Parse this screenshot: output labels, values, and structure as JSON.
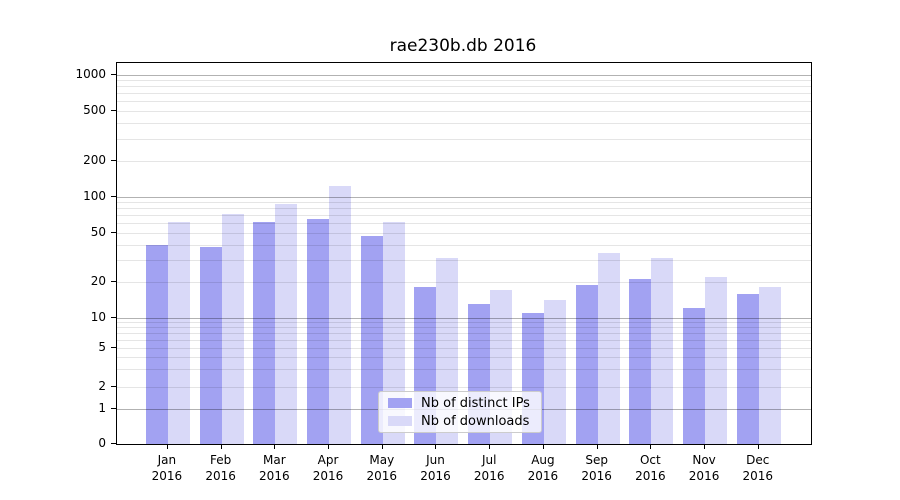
{
  "title": "rae230b.db 2016",
  "chart_data": {
    "type": "bar",
    "title": "rae230b.db 2016",
    "categories": [
      "Jan",
      "Feb",
      "Mar",
      "Apr",
      "May",
      "Jun",
      "Jul",
      "Aug",
      "Sep",
      "Oct",
      "Nov",
      "Dec"
    ],
    "year_label": "2016",
    "series": [
      {
        "name": "Nb of distinct IPs",
        "color": "#a2a2f2",
        "values": [
          40,
          38,
          61,
          65,
          47,
          18,
          13,
          11,
          19,
          21,
          12,
          16
        ]
      },
      {
        "name": "Nb of downloads",
        "color": "#d9d9f8",
        "values": [
          61,
          72,
          87,
          123,
          62,
          31,
          17,
          14,
          34,
          31,
          22,
          18
        ]
      }
    ],
    "xlabel": "",
    "ylabel": "",
    "yscale": "symlog",
    "yticks": [
      0,
      1,
      2,
      5,
      10,
      20,
      50,
      100,
      200,
      500,
      1000
    ],
    "ylim": [
      0,
      1300
    ],
    "grid": "on",
    "legend_position": "lower center"
  }
}
